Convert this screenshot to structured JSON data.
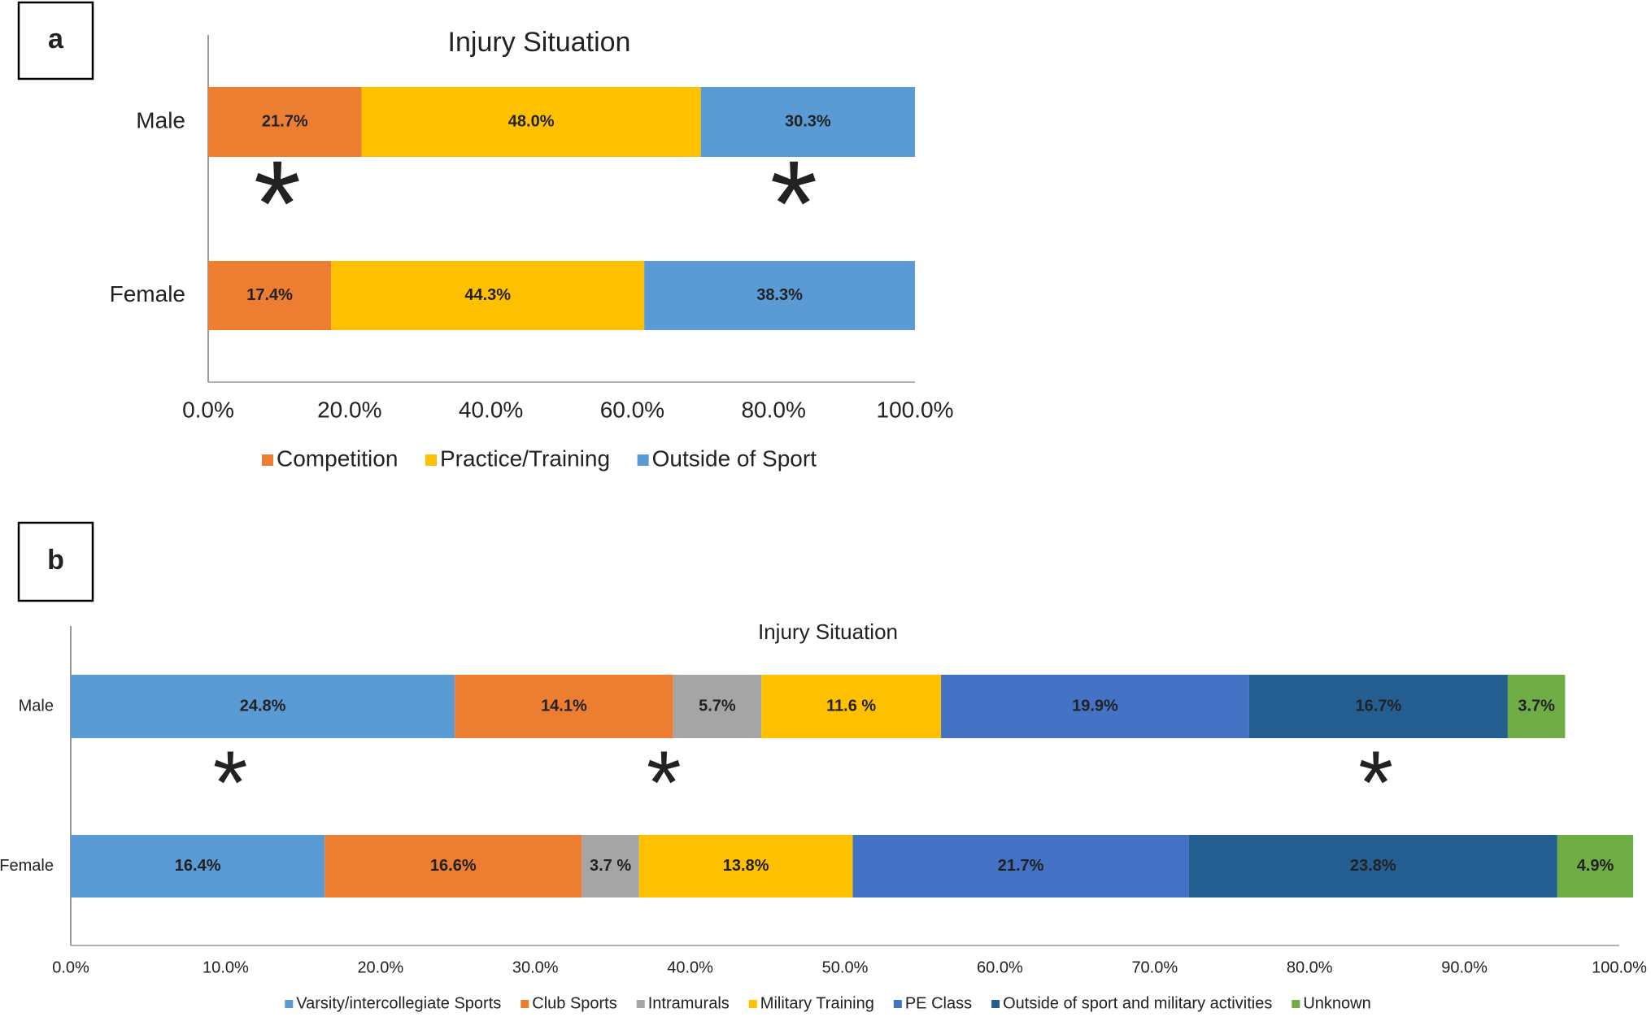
{
  "chart_data": [
    {
      "type": "bar",
      "orientation": "horizontal",
      "stacked": true,
      "panel": "a",
      "title": "Injury Situation",
      "categories": [
        "Male",
        "Female"
      ],
      "series": [
        {
          "name": "Competition",
          "color": "#ed7d31",
          "values": [
            21.7,
            17.4
          ],
          "value_labels": [
            "21.7%",
            "17.4%"
          ],
          "annotation": "*"
        },
        {
          "name": "Practice/Training",
          "color": "#ffc000",
          "values": [
            48.0,
            44.3
          ],
          "value_labels": [
            "48.0%",
            "44.3%"
          ]
        },
        {
          "name": "Outside of Sport",
          "color": "#5b9bd5",
          "values": [
            30.3,
            38.3
          ],
          "value_labels": [
            "30.3%",
            "38.3%"
          ],
          "annotation": "*"
        }
      ],
      "xlim": [
        0,
        100
      ],
      "xticks": [
        {
          "value": 0,
          "label": "0.0%"
        },
        {
          "value": 20,
          "label": "20.0%"
        },
        {
          "value": 40,
          "label": "40.0%"
        },
        {
          "value": 60,
          "label": "60.0%"
        },
        {
          "value": 80,
          "label": "80.0%"
        },
        {
          "value": 100,
          "label": "100.0%"
        }
      ],
      "legend": "bottom"
    },
    {
      "type": "bar",
      "orientation": "horizontal",
      "stacked": true,
      "panel": "b",
      "title": "Injury Situation",
      "categories": [
        "Male",
        "Female"
      ],
      "series": [
        {
          "name": "Varsity/intercollegiate Sports",
          "color": "#5b9bd5",
          "values": [
            24.8,
            16.4
          ],
          "value_labels": [
            "24.8%",
            "16.4%"
          ],
          "annotation": "*"
        },
        {
          "name": "Club Sports",
          "color": "#ed7d31",
          "values": [
            14.1,
            16.6
          ],
          "value_labels": [
            "14.1%",
            "16.6%"
          ]
        },
        {
          "name": "Intramurals",
          "color": "#a5a5a5",
          "values": [
            5.7,
            3.7
          ],
          "value_labels": [
            "5.7%",
            "3.7 %"
          ],
          "annotation": "*"
        },
        {
          "name": "Military Training",
          "color": "#ffc000",
          "values": [
            11.6,
            13.8
          ],
          "value_labels": [
            "11.6 %",
            "13.8%"
          ]
        },
        {
          "name": "PE Class",
          "color": "#4472c4",
          "values": [
            19.9,
            21.7
          ],
          "value_labels": [
            "19.9%",
            "21.7%"
          ]
        },
        {
          "name": "Outside of sport and military activities",
          "color": "#255e91",
          "values": [
            16.7,
            23.8
          ],
          "value_labels": [
            "16.7%",
            "23.8%"
          ],
          "annotation": "*"
        },
        {
          "name": "Unknown",
          "color": "#70ad47",
          "values": [
            3.7,
            4.9
          ],
          "value_labels": [
            "3.7%",
            "4.9%"
          ]
        }
      ],
      "xlim": [
        0,
        100
      ],
      "xticks": [
        {
          "value": 0,
          "label": "0.0%"
        },
        {
          "value": 10,
          "label": "10.0%"
        },
        {
          "value": 20,
          "label": "20.0%"
        },
        {
          "value": 30,
          "label": "30.0%"
        },
        {
          "value": 40,
          "label": "40.0%"
        },
        {
          "value": 50,
          "label": "50.0%"
        },
        {
          "value": 60,
          "label": "60.0%"
        },
        {
          "value": 70,
          "label": "70.0%"
        },
        {
          "value": 80,
          "label": "80.0%"
        },
        {
          "value": 90,
          "label": "90.0%"
        },
        {
          "value": 100,
          "label": "100.0%"
        }
      ],
      "legend": "bottom"
    }
  ]
}
